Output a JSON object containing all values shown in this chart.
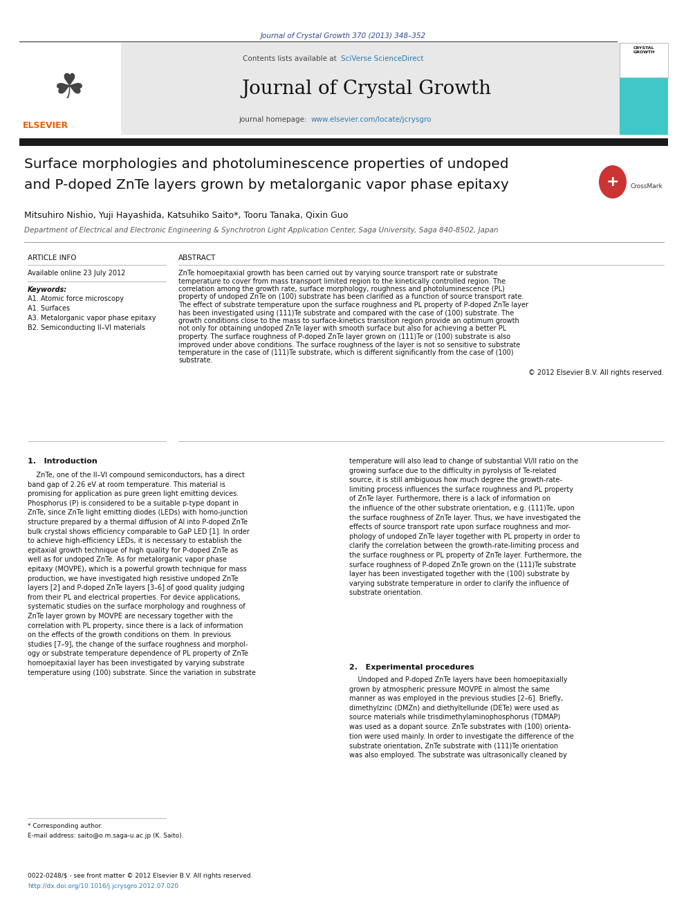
{
  "fig_width": 9.92,
  "fig_height": 13.23,
  "bg_color": "#ffffff",
  "journal_ref": "Journal of Crystal Growth 370 (2013) 348–352",
  "journal_ref_color": "#2b4593",
  "sciverse_text": "SciVerse ScienceDirect",
  "sciverse_color": "#2b7ab5",
  "journal_title": "Journal of Crystal Growth",
  "homepage_url": "www.elsevier.com/locate/jcrysgro",
  "homepage_url_color": "#2b7ab5",
  "header_bg": "#e8e8e8",
  "header_right_bg": "#40c8c8",
  "article_title_line1": "Surface morphologies and photoluminescence properties of undoped",
  "article_title_line2": "and P-doped ZnTe layers grown by metalorganic vapor phase epitaxy",
  "authors": "Mitsuhiro Nishio, Yuji Hayashida, Katsuhiko Saito*, Tooru Tanaka, Qixin Guo",
  "affiliation": "Department of Electrical and Electronic Engineering & Synchrotron Light Application Center, Saga University, Saga 840-8502, Japan",
  "article_info_header": "ARTICLE INFO",
  "available_online": "Available online 23 July 2012",
  "keywords_label": "Keywords:",
  "keywords": [
    "A1. Atomic force microscopy",
    "A1. Surfaces",
    "A3. Metalorganic vapor phase epitaxy",
    "B2. Semiconducting II–VI materials"
  ],
  "abstract_header": "ABSTRACT",
  "abstract_text": "ZnTe homoepitaxial growth has been carried out by varying source transport rate or substrate temperature to cover from mass transport limited region to the kinetically controlled region. The correlation among the growth rate, surface morphology, roughness and photoluminescence (PL) property of undoped ZnTe on (100) substrate has been clarified as a function of source transport rate. The effect of substrate temperature upon the surface roughness and PL property of P-doped ZnTe layer has been investigated using (111)Te substrate and compared with the case of (100) substrate. The growth conditions close to the mass to surface-kinetics transition region provide an optimum growth not only for obtaining undoped ZnTe layer with smooth surface but also for achieving a better PL property. The surface roughness of P-doped ZnTe layer grown on (111)Te or (100) substrate is also improved under above conditions. The surface roughness of the layer is not so sensitive to substrate temperature in the case of (111)Te substrate, which is different significantly from the case of (100) substrate.",
  "copyright_text": "© 2012 Elsevier B.V. All rights reserved.",
  "intro_header": "1.   Introduction",
  "intro_col1": "    ZnTe, one of the II–VI compound semiconductors, has a direct\nband gap of 2.26 eV at room temperature. This material is\npromising for application as pure green light emitting devices.\nPhosphorus (P) is considered to be a suitable p-type dopant in\nZnTe, since ZnTe light emitting diodes (LEDs) with homo-junction\nstructure prepared by a thermal diffusion of Al into P-doped ZnTe\nbulk crystal shows efficiency comparable to GaP LED [1]. In order\nto achieve high-efficiency LEDs, it is necessary to establish the\nepitaxial growth technique of high quality for P-doped ZnTe as\nwell as for undoped ZnTe. As for metalorganic vapor phase\nepitaxy (MOVPE), which is a powerful growth technique for mass\nproduction, we have investigated high resistive undoped ZnTe\nlayers [2] and P-doped ZnTe layers [3–6] of good quality judging\nfrom their PL and electrical properties. For device applications,\nsystematic studies on the surface morphology and roughness of\nZnTe layer grown by MOVPE are necessary together with the\ncorrelation with PL property, since there is a lack of information\non the effects of the growth conditions on them. In previous\nstudies [7–9], the change of the surface roughness and morphol-\nogy or substrate temperature dependence of PL property of ZnTe\nhomoepitaxial layer has been investigated by varying substrate\ntemperature using (100) substrate. Since the variation in substrate",
  "intro_col2": "temperature will also lead to change of substantial VI/II ratio on the\ngrowing surface due to the difficulty in pyrolysis of Te-related\nsource, it is still ambiguous how much degree the growth-rate-\nlimiting process influences the surface roughness and PL property\nof ZnTe layer. Furthermore, there is a lack of information on\nthe influence of the other substrate orientation, e.g. (111)Te, upon\nthe surface roughness of ZnTe layer. Thus, we have investigated the\neffects of source transport rate upon surface roughness and mor-\nphology of undoped ZnTe layer together with PL property in order to\nclarify the correlation between the growth-rate-limiting process and\nthe surface roughness or PL property of ZnTe layer. Furthermore, the\nsurface roughness of P-doped ZnTe grown on the (111)Te substrate\nlayer has been investigated together with the (100) substrate by\nvarying substrate temperature in order to clarify the influence of\nsubstrate orientation.",
  "exp_header": "2.   Experimental procedures",
  "exp_col2": "    Undoped and P-doped ZnTe layers have been homoepitaxially\ngrown by atmospheric pressure MOVPE in almost the same\nmanner as was employed in the previous studies [2–6]. Briefly,\ndimethylzinc (DMZn) and diethyltelluride (DETe) were used as\nsource materials while trisdimethylaminophosphorus (TDMAP)\nwas used as a dopant source. ZnTe substrates with (100) orienta-\ntion were used mainly. In order to investigate the difference of the\nsubstrate orientation, ZnTe substrate with (111)Te orientation\nwas also employed. The substrate was ultrasonically cleaned by",
  "footnote_asterisk": "* Corresponding author.",
  "footnote_email": "E-mail address: saito@o.m.saga-u.ac.jp (K. Saito).",
  "footer_line1": "0022-0248/$ - see front matter © 2012 Elsevier B.V. All rights reserved.",
  "footer_line2": "http://dx.doi.org/10.1016/j.jcrysgro.2012.07.020",
  "separator_color": "#333333",
  "light_separator_color": "#999999",
  "thick_bar_color": "#1a1a1a",
  "elsevier_color": "#e86000"
}
